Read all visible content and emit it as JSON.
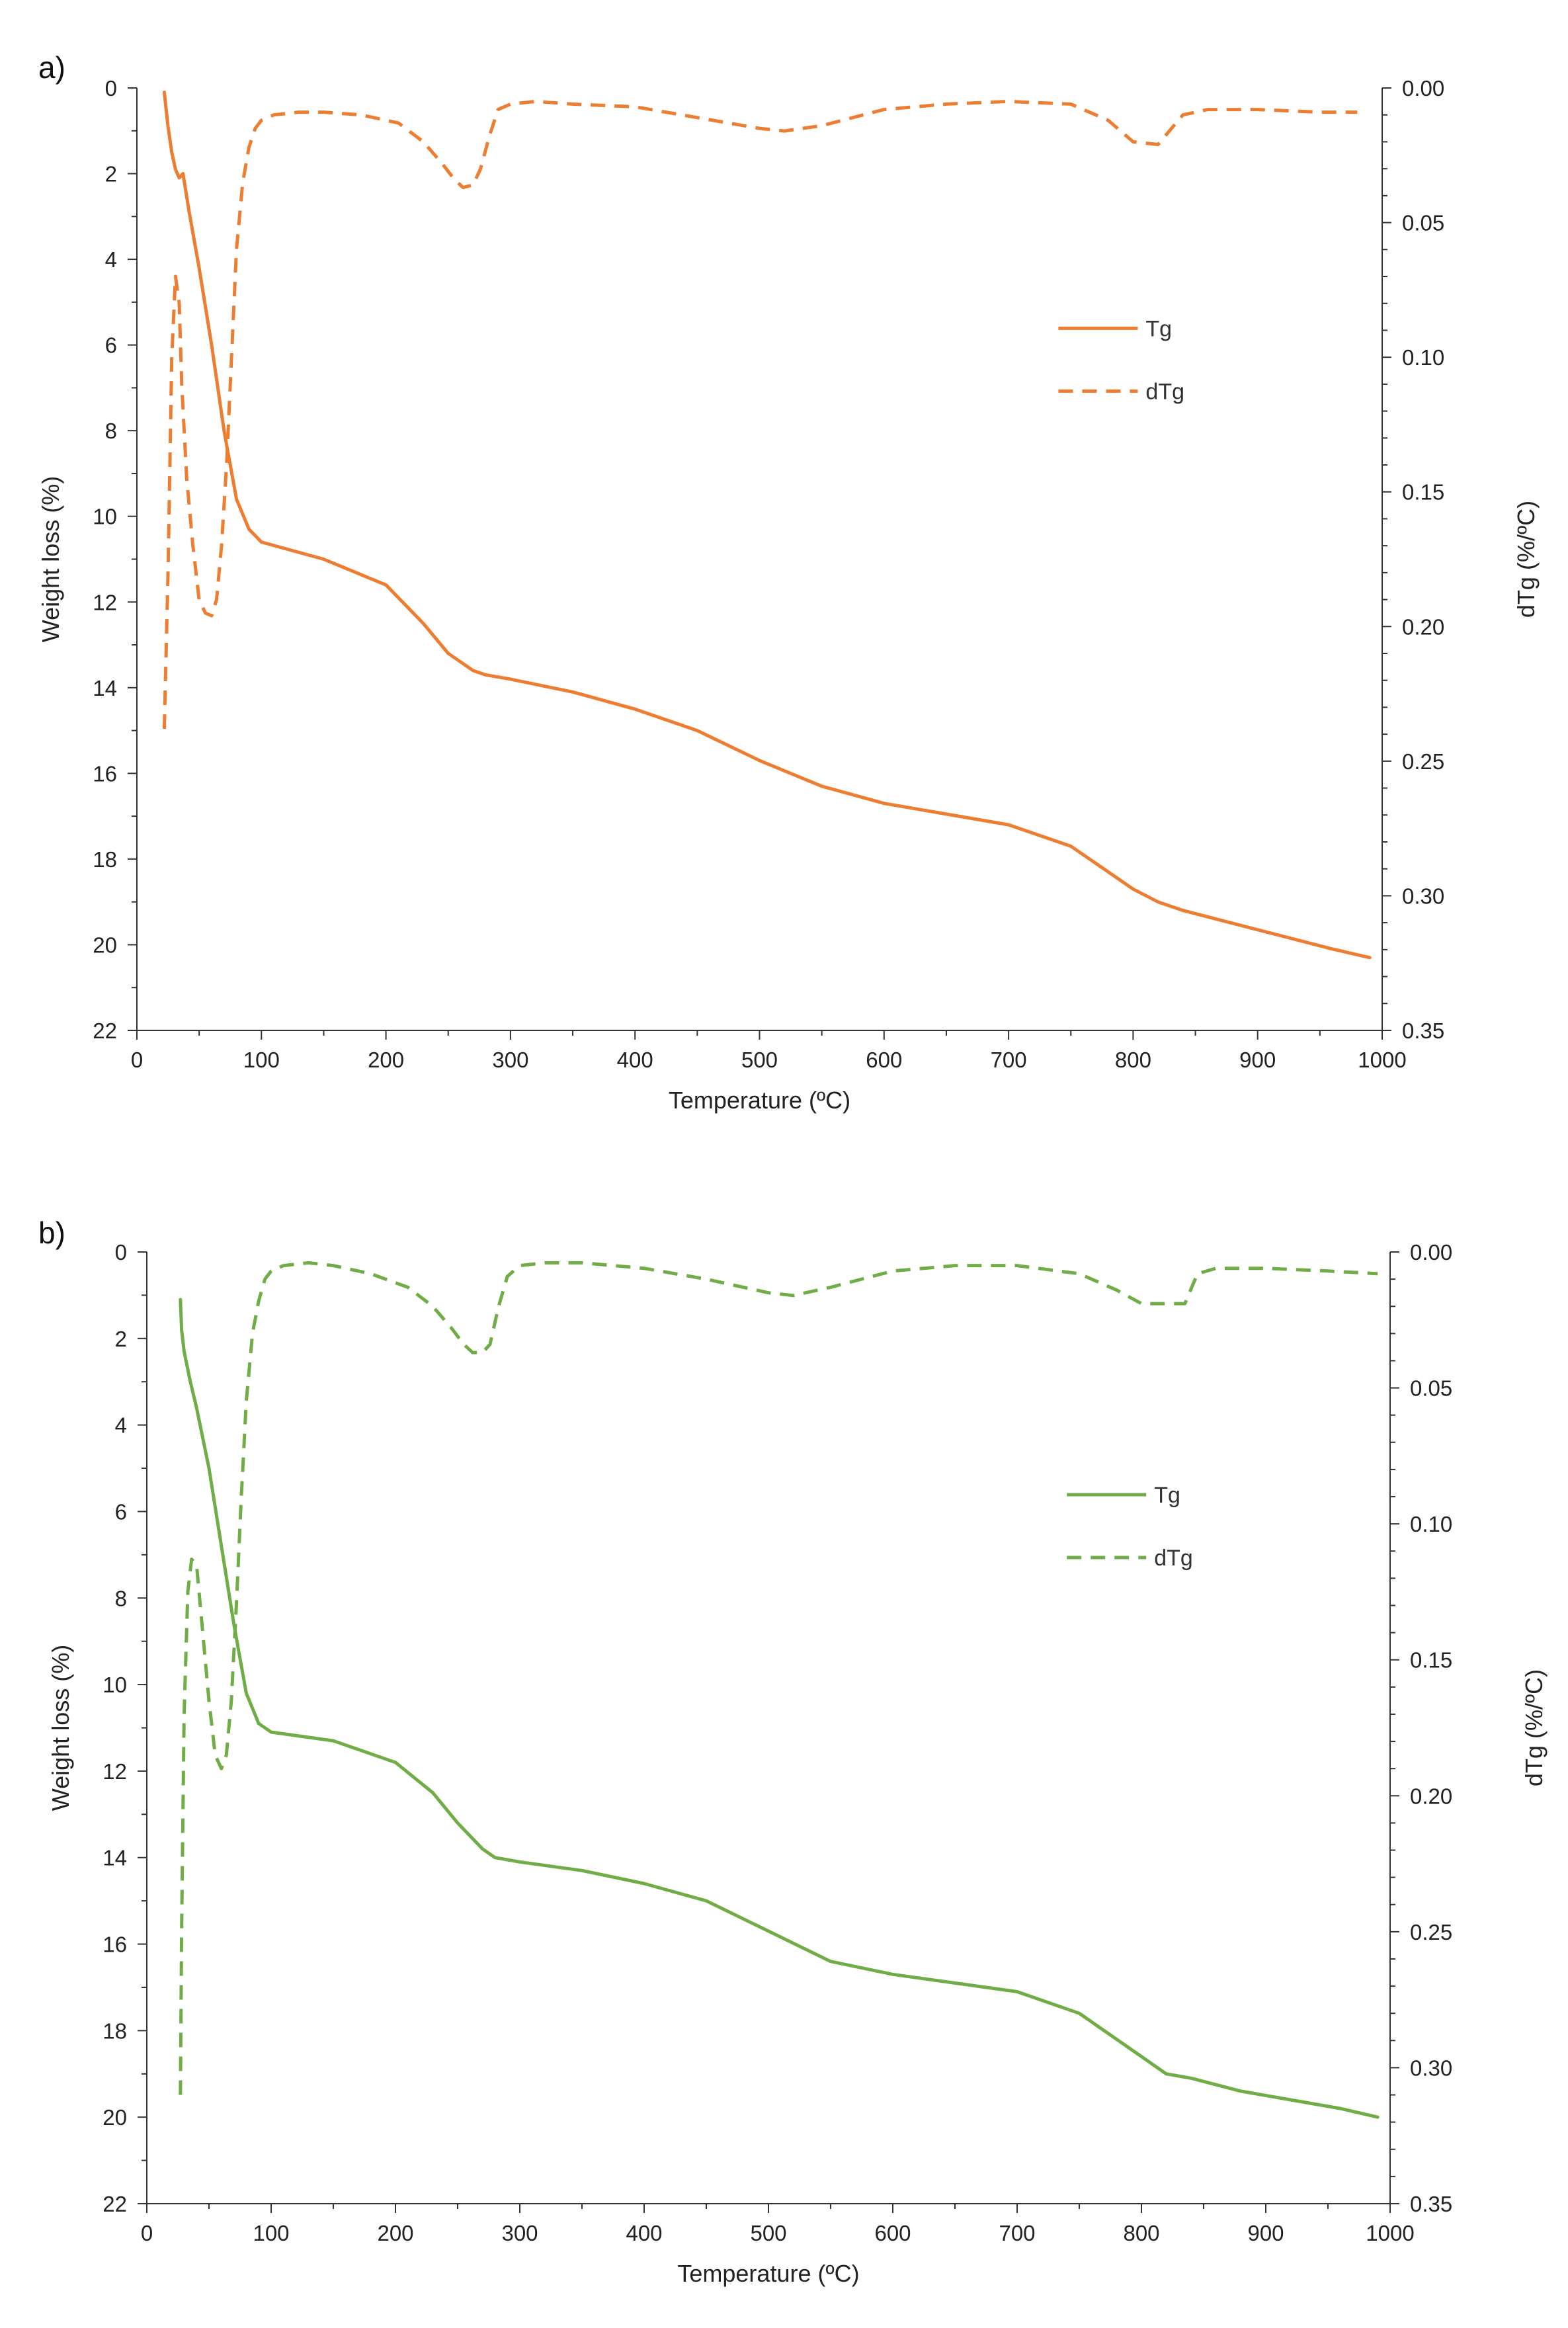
{
  "chart_data": [
    {
      "type": "line",
      "panel_label": "a)",
      "color": "#ED7D31",
      "xlabel": "Temperature (ºC)",
      "ylabel": "Weight loss (%)",
      "y2label": "dTg (%/ºC)",
      "xlim": [
        0,
        1000
      ],
      "ylim": [
        0,
        22
      ],
      "y2lim": [
        0,
        0.35
      ],
      "y_reversed": true,
      "y2_reversed": true,
      "x_ticks": [
        "0",
        "100",
        "200",
        "300",
        "400",
        "500",
        "600",
        "700",
        "800",
        "900",
        "1000"
      ],
      "y_ticks": [
        "0",
        "2",
        "4",
        "6",
        "8",
        "10",
        "12",
        "14",
        "16",
        "18",
        "20",
        "22"
      ],
      "y2_ticks": [
        "0.00",
        "0.05",
        "0.10",
        "0.15",
        "0.20",
        "0.25",
        "0.30",
        "0.35"
      ],
      "legend": [
        "Tg",
        "dTg"
      ],
      "legend_position": "upper-right",
      "series": [
        {
          "name": "Tg",
          "axis": "left",
          "style": "solid",
          "x": [
            22,
            25,
            28,
            31,
            34,
            37,
            42,
            50,
            60,
            70,
            80,
            90,
            100,
            150,
            200,
            230,
            250,
            270,
            280,
            300,
            350,
            400,
            450,
            500,
            550,
            600,
            700,
            750,
            780,
            800,
            820,
            840,
            880,
            920,
            960,
            990
          ],
          "y": [
            0.1,
            0.9,
            1.5,
            1.9,
            2.1,
            2.0,
            2.9,
            4.2,
            6.0,
            8.0,
            9.6,
            10.3,
            10.6,
            11.0,
            11.6,
            12.5,
            13.2,
            13.6,
            13.7,
            13.8,
            14.1,
            14.5,
            15.0,
            15.7,
            16.3,
            16.7,
            17.2,
            17.7,
            18.3,
            18.7,
            19.0,
            19.2,
            19.5,
            19.8,
            20.1,
            20.3
          ]
        },
        {
          "name": "dTg",
          "axis": "right",
          "style": "dashed",
          "x": [
            22,
            25,
            28,
            31,
            34,
            36,
            40,
            45,
            50,
            55,
            60,
            64,
            68,
            72,
            76,
            80,
            85,
            90,
            95,
            100,
            110,
            130,
            150,
            180,
            210,
            230,
            245,
            255,
            262,
            270,
            276,
            283,
            290,
            300,
            320,
            350,
            400,
            450,
            500,
            520,
            550,
            600,
            650,
            700,
            750,
            780,
            800,
            820,
            840,
            860,
            900,
            950,
            980
          ],
          "y": [
            0.238,
            0.18,
            0.1,
            0.07,
            0.08,
            0.11,
            0.145,
            0.17,
            0.19,
            0.195,
            0.196,
            0.19,
            0.17,
            0.14,
            0.1,
            0.06,
            0.035,
            0.022,
            0.015,
            0.012,
            0.01,
            0.009,
            0.009,
            0.01,
            0.013,
            0.02,
            0.028,
            0.034,
            0.037,
            0.036,
            0.03,
            0.018,
            0.008,
            0.006,
            0.005,
            0.006,
            0.007,
            0.011,
            0.015,
            0.016,
            0.014,
            0.008,
            0.006,
            0.005,
            0.006,
            0.012,
            0.02,
            0.021,
            0.01,
            0.008,
            0.008,
            0.009,
            0.009
          ]
        }
      ]
    },
    {
      "type": "line",
      "panel_label": "b)",
      "color": "#70AD47",
      "xlabel": "Temperature (ºC)",
      "ylabel": "Weight loss (%)",
      "y2label": "dTg (%/ºC)",
      "xlim": [
        0,
        1000
      ],
      "ylim": [
        0,
        22
      ],
      "y2lim": [
        0,
        0.35
      ],
      "y_reversed": true,
      "y2_reversed": true,
      "x_ticks": [
        "0",
        "100",
        "200",
        "300",
        "400",
        "500",
        "600",
        "700",
        "800",
        "900",
        "1000"
      ],
      "y_ticks": [
        "0",
        "2",
        "4",
        "6",
        "8",
        "10",
        "12",
        "14",
        "16",
        "18",
        "20",
        "22"
      ],
      "y2_ticks": [
        "0.00",
        "0.05",
        "0.10",
        "0.15",
        "0.20",
        "0.25",
        "0.30",
        "0.35"
      ],
      "legend": [
        "Tg",
        "dTg"
      ],
      "legend_position": "upper-right",
      "series": [
        {
          "name": "Tg",
          "axis": "left",
          "style": "solid",
          "x": [
            27,
            28,
            30,
            35,
            40,
            50,
            60,
            70,
            80,
            90,
            100,
            150,
            200,
            230,
            250,
            270,
            280,
            300,
            350,
            400,
            450,
            500,
            550,
            600,
            700,
            750,
            780,
            800,
            820,
            840,
            880,
            920,
            960,
            990
          ],
          "y": [
            1.1,
            1.8,
            2.3,
            3.0,
            3.6,
            5.0,
            6.8,
            8.6,
            10.2,
            10.9,
            11.1,
            11.3,
            11.8,
            12.5,
            13.2,
            13.8,
            14.0,
            14.1,
            14.3,
            14.6,
            15.0,
            15.7,
            16.4,
            16.7,
            17.1,
            17.6,
            18.2,
            18.6,
            19.0,
            19.1,
            19.4,
            19.6,
            19.8,
            20.0
          ]
        },
        {
          "name": "dTg",
          "axis": "right",
          "style": "dashed",
          "x": [
            27,
            28,
            30,
            33,
            36,
            40,
            45,
            50,
            55,
            60,
            64,
            68,
            72,
            76,
            80,
            85,
            90,
            95,
            100,
            110,
            130,
            150,
            180,
            210,
            230,
            245,
            255,
            262,
            270,
            276,
            283,
            290,
            300,
            320,
            350,
            400,
            450,
            500,
            520,
            550,
            600,
            650,
            700,
            750,
            780,
            800,
            820,
            835,
            845,
            860,
            900,
            950,
            990
          ],
          "y": [
            0.31,
            0.25,
            0.17,
            0.125,
            0.113,
            0.115,
            0.14,
            0.165,
            0.185,
            0.19,
            0.185,
            0.165,
            0.13,
            0.09,
            0.055,
            0.03,
            0.018,
            0.01,
            0.007,
            0.005,
            0.004,
            0.005,
            0.008,
            0.013,
            0.02,
            0.028,
            0.034,
            0.037,
            0.037,
            0.034,
            0.02,
            0.009,
            0.005,
            0.004,
            0.004,
            0.006,
            0.01,
            0.015,
            0.016,
            0.013,
            0.007,
            0.005,
            0.005,
            0.008,
            0.014,
            0.019,
            0.019,
            0.019,
            0.008,
            0.006,
            0.006,
            0.007,
            0.008
          ]
        }
      ]
    }
  ]
}
